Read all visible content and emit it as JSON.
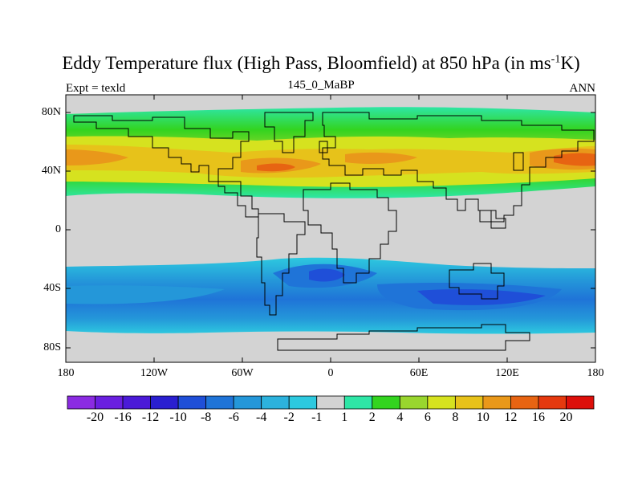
{
  "title": {
    "main": "Eddy Temperature flux (High Pass, Bloomfield) at 850 hPa (in ms",
    "exp": "-1",
    "tail": "K)"
  },
  "subtitle": {
    "left": "Expt = texld",
    "center": "145_0_MaBP",
    "right": "ANN"
  },
  "map": {
    "lat_labels": [
      "80N",
      "40N",
      "0",
      "40S",
      "80S"
    ],
    "lon_labels": [
      "180",
      "120W",
      "60W",
      "0",
      "60E",
      "120E",
      "180"
    ]
  },
  "colorbar": {
    "labels": [
      "-20",
      "-16",
      "-12",
      "-10",
      "-8",
      "-6",
      "-4",
      "-2",
      "-1",
      "1",
      "2",
      "4",
      "6",
      "8",
      "10",
      "12",
      "16",
      "20"
    ],
    "colors": [
      "#8b2be2",
      "#6a1fe0",
      "#4b1ad8",
      "#2a1fd0",
      "#1f4fd8",
      "#1f74d8",
      "#2497d9",
      "#2cb2dd",
      "#2dc9df",
      "#d3d3d3",
      "#2ee6a6",
      "#33d41f",
      "#99d62e",
      "#d6e21f",
      "#e7c21a",
      "#e9981a",
      "#e76412",
      "#e5390e",
      "#dd0f0a"
    ]
  }
}
